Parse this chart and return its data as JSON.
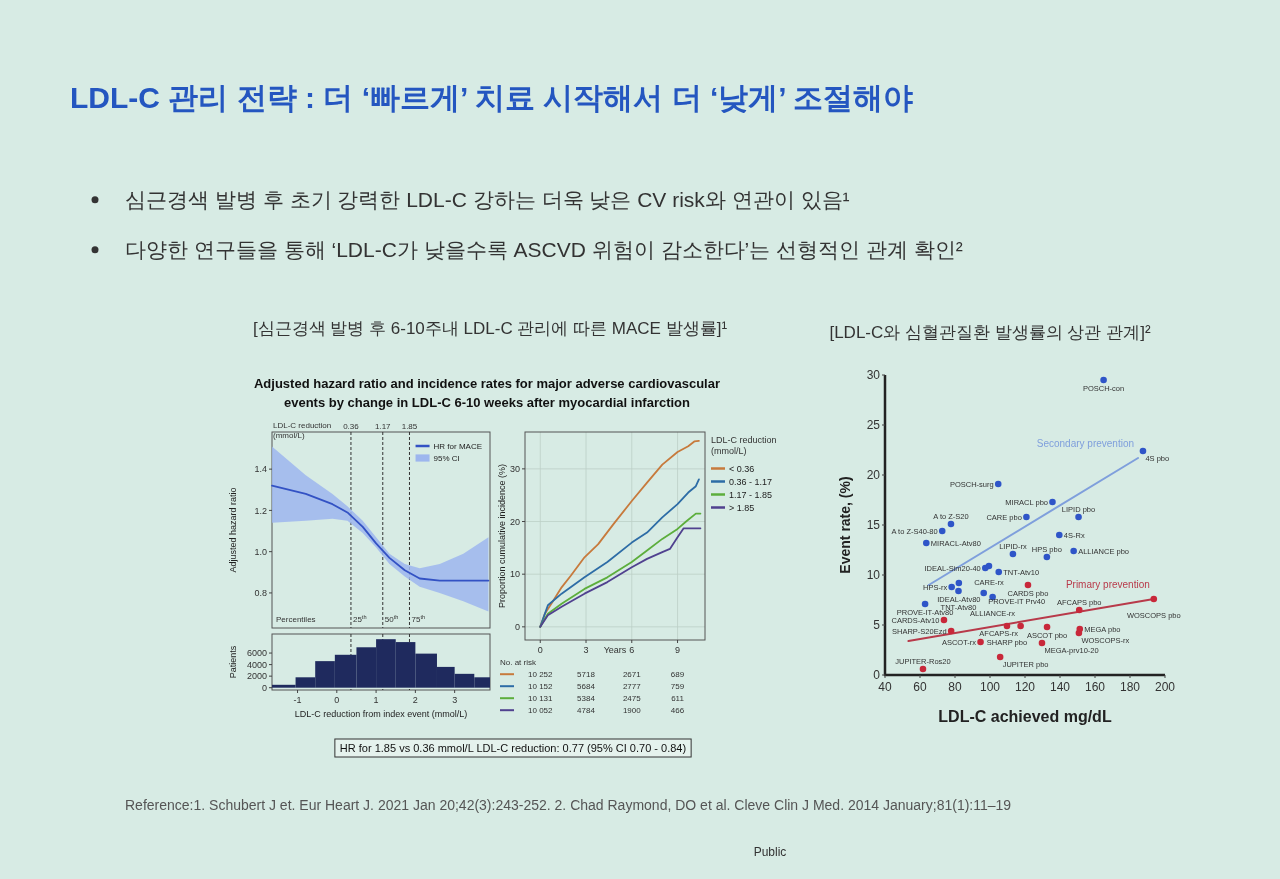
{
  "chart_data": [
    {
      "type": "other",
      "title": "LDL-C 관리 전략 : 더 ‘빠르게’ 치료 시작해서 더 ‘낮게’ 조절해야",
      "annotations": [
        "심근경색 발병 후 초기 강력한 LDL-C 강하는 더욱 낮은 CV risk와 연관이 있음¹",
        "다양한 연구들을 통해 ‘LDL-C가 낮을수록 ASCVD 위험이 감소한다’는 선형적인 관계 확인²",
        "Reference:1. Schubert J et. Eur Heart J. 2021 Jan 20;42(3):243-252. 2. Chad Raymond, DO et al. Cleve Clin J Med. 2014 January;81(1):11–19",
        "Public"
      ]
    },
    {
      "type": "line",
      "title": "[심근경색 발병 후 6-10주내 LDL-C 관리에 따른 MACE 발생률]¹",
      "subtitle": "Adjusted hazard ratio and incidence rates for major adverse cardiovascular events by change in LDL-C 6-10 weeks after myocardial infarction",
      "ylabel": "Adjusted hazard ratio",
      "x": [
        -1.65,
        -0.79,
        -0.11,
        0.27,
        0.66,
        1.0,
        1.34,
        1.73,
        2.11,
        2.62,
        3.22,
        3.86
      ],
      "series": [
        {
          "name": "HR for MACE",
          "color": "#3352c4",
          "values": [
            1.32,
            1.28,
            1.23,
            1.19,
            1.12,
            1.04,
            0.97,
            0.91,
            0.87,
            0.86,
            0.86,
            0.86
          ]
        },
        {
          "name": "95% CI",
          "type": "area",
          "color": "#9db6ee",
          "values": [
            null,
            null,
            null,
            null,
            null,
            null,
            null,
            null,
            null,
            null,
            null,
            null
          ],
          "lower": [
            1.14,
            1.15,
            1.16,
            1.15,
            1.09,
            1.02,
            0.94,
            0.88,
            0.83,
            0.8,
            0.76,
            0.71
          ],
          "upper": [
            1.51,
            1.37,
            1.28,
            1.22,
            1.15,
            1.07,
            0.99,
            0.94,
            0.92,
            0.94,
            0.99,
            1.07
          ]
        }
      ],
      "xlim": [
        -1.65,
        3.9
      ],
      "ylim": [
        0.63,
        1.58
      ],
      "yticks": [
        0.8,
        {
          "value": 1,
          "label": "1.0"
        },
        1.2,
        1.4
      ],
      "tick_labels": "y",
      "ref_lines": [
        {
          "axis": "x",
          "value": 0.36,
          "label": "0.36",
          "line_style": "dashed"
        },
        {
          "axis": "x",
          "value": 1.17,
          "label": "1.17",
          "line_style": "dashed"
        },
        {
          "axis": "x",
          "value": 1.85,
          "label": "1.85",
          "line_style": "dashed"
        }
      ],
      "annotations": [
        "LDL-C reduction (mmol/L)",
        "Percentiles",
        {
          "text": "25$^{th}$",
          "x": 0.36,
          "y": 0.66
        },
        {
          "text": "50$^{th}$",
          "x": 1.17,
          "y": 0.66
        },
        {
          "text": "75$^{th}$",
          "x": 1.85,
          "y": 0.66
        }
      ],
      "legend": "top right"
    },
    {
      "type": "histogram",
      "xlabel": "LDL-C reduction from index event (mmol/L)",
      "ylabel": "Patients",
      "bins": [
        -1.65,
        -1.05,
        -0.55,
        -0.05,
        0.5,
        1.0,
        1.5,
        2.0,
        2.55,
        3.0,
        3.5,
        3.9
      ],
      "values": [
        500,
        1800,
        4600,
        5700,
        7000,
        8400,
        7900,
        5900,
        3600,
        2400,
        1800
      ],
      "color": "#1f2a5e",
      "xlim": [
        -1.65,
        3.9
      ],
      "ylim": [
        -400,
        9300
      ],
      "xticks": [
        -1,
        0,
        1,
        2,
        3
      ],
      "yticks": [
        0,
        2000,
        4000,
        6000
      ],
      "ref_lines": [
        {
          "axis": "x",
          "value": 0.36,
          "line_style": "dashed"
        },
        {
          "axis": "x",
          "value": 1.17,
          "line_style": "dashed"
        },
        {
          "axis": "x",
          "value": 1.85,
          "line_style": "dashed"
        }
      ],
      "annotations": [
        "HR for 1.85 vs 0.36 mmol/L LDL-C reduction: 0.77 (95% CI 0.70 - 0.84)"
      ]
    },
    {
      "type": "line",
      "xlabel": "Years",
      "ylabel": "Proportion cumulative incidence (%)",
      "legend_title": "LDL-C reduction (mmol/L)",
      "legend": "right",
      "grid": true,
      "xlim": [
        -1,
        10.8
      ],
      "ylim": [
        -2.5,
        37
      ],
      "xticks": [
        0,
        3,
        6,
        9
      ],
      "yticks": [
        0,
        10,
        20,
        30
      ],
      "series": [
        {
          "name": "< 0.36",
          "color": "#c77a3c",
          "x": [
            0,
            0.3,
            0.8,
            1.4,
            2.0,
            2.9,
            3.8,
            4.8,
            6.0,
            7.0,
            8.0,
            9.0,
            9.7,
            10.1,
            10.4
          ],
          "values": [
            0,
            2.5,
            4.7,
            7.5,
            9.7,
            13.2,
            15.7,
            19.5,
            23.9,
            27.4,
            30.8,
            33.2,
            34.3,
            35.2,
            35.3
          ]
        },
        {
          "name": "0.36 - 1.17",
          "color": "#2d6ca6",
          "x": [
            0,
            0.5,
            1.4,
            2.9,
            4.4,
            6.0,
            7.0,
            8.0,
            9.0,
            9.7,
            10.2,
            10.4
          ],
          "values": [
            0,
            4.1,
            6.3,
            9.4,
            12.3,
            16.0,
            17.9,
            20.8,
            23.3,
            25.5,
            26.7,
            28.0
          ]
        },
        {
          "name": "1.17 - 1.85",
          "color": "#5cae3c",
          "x": [
            0,
            0.5,
            1.4,
            2.9,
            4.4,
            6.0,
            7.0,
            8.0,
            9.0,
            9.6,
            10.2,
            10.5
          ],
          "values": [
            0,
            2.5,
            4.4,
            7.2,
            9.4,
            12.3,
            14.5,
            16.7,
            18.6,
            20.1,
            21.5,
            21.5
          ]
        },
        {
          "name": "> 1.85",
          "color": "#50418f",
          "x": [
            0,
            0.5,
            1.4,
            2.9,
            4.4,
            6.0,
            7.0,
            8.0,
            8.5,
            9.0,
            9.4,
            10.5
          ],
          "values": [
            0,
            2.2,
            3.8,
            6.3,
            8.5,
            11.3,
            12.9,
            14.2,
            14.8,
            17.0,
            18.7,
            18.7
          ]
        }
      ],
      "annotations": [
        "No. at risk",
        "10 252",
        "5718",
        "2671",
        "689",
        "10 152",
        "5684",
        "2777",
        "759",
        "10 131",
        "5384",
        "2475",
        "611",
        "10 052",
        "4784",
        "1900",
        "466"
      ]
    },
    {
      "type": "scatter",
      "title": "[LDL-C와 심혈관질환 발생률의 상관 관계]²",
      "xlabel": "LDL-C achieved mg/dL",
      "ylabel": "Event rate, (%)",
      "xlim": [
        40,
        200
      ],
      "ylim": [
        0,
        30
      ],
      "xticks": [
        40,
        60,
        80,
        100,
        120,
        140,
        160,
        180,
        200
      ],
      "yticks": [
        0,
        5,
        10,
        15,
        20,
        25,
        30
      ],
      "marker": "circle",
      "series": [
        {
          "color": "#2f55c8",
          "x": [
            164.9,
            187.4,
            104.7,
            135.7,
            120.8,
            150.6,
            77.7,
            72.7,
            139.6,
            63.6,
            147.8,
            113.1,
            132.5,
            99.4,
            97.3,
            105.0,
            82.2,
            78.1,
            82.0,
            96.4,
            101.5,
            62.9
          ],
          "values": [
            29.5,
            22.4,
            19.1,
            17.3,
            15.8,
            15.8,
            15.1,
            14.4,
            14.0,
            13.2,
            12.4,
            12.1,
            11.8,
            10.9,
            10.7,
            10.3,
            9.2,
            8.8,
            8.4,
            8.2,
            7.8,
            7.1
          ]
        },
        {
          "color": "#c8283a",
          "x": [
            121.7,
            193.6,
            151.0,
            73.7,
            132.6,
            109.7,
            117.5,
            151.3,
            77.8,
            150.8,
            94.6,
            129.7,
            105.8,
            61.7
          ],
          "values": [
            9.0,
            7.6,
            6.5,
            5.5,
            4.8,
            4.9,
            4.9,
            4.6,
            4.4,
            4.2,
            3.3,
            3.2,
            1.8,
            0.6
          ]
        },
        {
          "name": "Secondary prevention",
          "type": "line",
          "marker": "none",
          "color": "#7f9fdc",
          "x": [
            65,
            184.6
          ],
          "values": [
            9.0,
            21.7
          ]
        },
        {
          "name": "Primary prevention",
          "type": "line",
          "marker": "none",
          "color": "#b83a4a",
          "x": [
            53.4,
            193.6
          ],
          "values": [
            3.4,
            7.6
          ]
        }
      ],
      "annotations": [
        {
          "text": "POSCH-con",
          "x": 164.9,
          "y": 29.5
        },
        {
          "text": "4S pbo",
          "x": 187.4,
          "y": 22.4
        },
        {
          "text": "POSCH-surg",
          "x": 104.7,
          "y": 19.1
        },
        {
          "text": "MIRACL pbo",
          "x": 135.7,
          "y": 17.3
        },
        {
          "text": "CARE pbo",
          "x": 120.8,
          "y": 15.8
        },
        {
          "text": "LIPID pbo",
          "x": 150.6,
          "y": 15.8
        },
        {
          "text": "A to Z-S20",
          "x": 77.7,
          "y": 15.1
        },
        {
          "text": "A to Z-S40-80",
          "x": 72.7,
          "y": 14.4
        },
        {
          "text": "4S-Rx",
          "x": 139.6,
          "y": 14.0
        },
        {
          "text": "MIRACL-Atv80",
          "x": 63.6,
          "y": 13.2
        },
        {
          "text": "ALLIANCE pbo",
          "x": 147.8,
          "y": 12.4
        },
        {
          "text": "LIPID-rx",
          "x": 113.1,
          "y": 12.1
        },
        {
          "text": "HPS pbo",
          "x": 132.5,
          "y": 11.8
        },
        {
          "text": "CARE-rx",
          "x": 99.4,
          "y": 10.9
        },
        {
          "text": "IDEAL-Sim20-40",
          "x": 97.3,
          "y": 10.7
        },
        {
          "text": "TNT-Atv10",
          "x": 105.0,
          "y": 10.3
        },
        {
          "text": "IDEAL-Atv80",
          "x": 82.2,
          "y": 9.2
        },
        {
          "text": "HPS-rx",
          "x": 78.1,
          "y": 8.8
        },
        {
          "text": "TNT-Atv80",
          "x": 82.0,
          "y": 8.4
        },
        {
          "text": "PROVE-IT Prv40",
          "x": 96.4,
          "y": 8.2
        },
        {
          "text": "ALLIANCE-rx",
          "x": 101.5,
          "y": 7.8
        },
        {
          "text": "PROVE-IT-Atv80",
          "x": 62.9,
          "y": 7.1
        },
        {
          "text": "CARDS pbo",
          "x": 121.7,
          "y": 9.0
        },
        {
          "text": "WOSCOPS pbo",
          "x": 193.6,
          "y": 7.6
        },
        {
          "text": "AFCAPS pbo",
          "x": 151.0,
          "y": 6.5
        },
        {
          "text": "CARDS-Atv10",
          "x": 73.7,
          "y": 5.5
        },
        {
          "text": "ASCOT pbo",
          "x": 132.6,
          "y": 4.8
        },
        {
          "text": "SHARP pbo",
          "x": 109.7,
          "y": 4.9
        },
        {
          "text": "AFCAPS-rx",
          "x": 117.5,
          "y": 4.9
        },
        {
          "text": "MEGA pbo",
          "x": 151.3,
          "y": 4.6
        },
        {
          "text": "SHARP-S20Ezd",
          "x": 77.8,
          "y": 4.4
        },
        {
          "text": "WOSCOPS-rx",
          "x": 150.8,
          "y": 4.2
        },
        {
          "text": "ASCOT-rx",
          "x": 94.6,
          "y": 3.3
        },
        {
          "text": "MEGA-prv10-20",
          "x": 129.7,
          "y": 3.2
        },
        {
          "text": "JUPITER pbo",
          "x": 105.8,
          "y": 1.8
        },
        {
          "text": "JUPITER-Ros20",
          "x": 61.7,
          "y": 0.6
        }
      ]
    }
  ]
}
